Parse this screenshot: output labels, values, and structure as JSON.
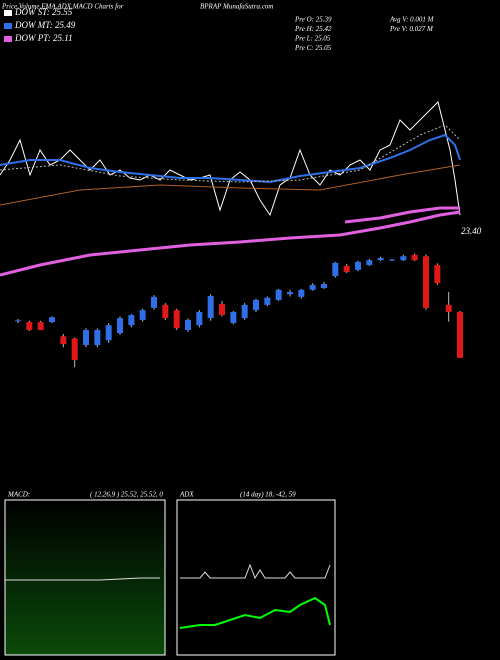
{
  "chart_data": {
    "type": "candlestick",
    "title": "Price,Volume,EMA,ADX,MACD Charts for",
    "subtitle": "BPRAP MunafaSutra.com",
    "legend": [
      {
        "name": "DOW ST: 25.55",
        "color": "#ffffff"
      },
      {
        "name": "DOW MT: 25.49",
        "color": "#2f6fe8"
      },
      {
        "name": "DOW PT: 25.11",
        "color": "#e060e0"
      }
    ],
    "stats": [
      "Pre  O: 25.39",
      "Pre  H: 25.42",
      "Pre  L: 25.05",
      "Pre  C: 25.05",
      "Avg  V: 0.001 M",
      "Pre  V: 0.027 M"
    ],
    "annotation": "23.40",
    "ylim": [
      23.0,
      25.6
    ],
    "up_color": "#2f6fe8",
    "down_color": "#e01818",
    "open": [
      23.99,
      23.97,
      23.97,
      23.97,
      23.65,
      23.6,
      23.45,
      23.45,
      23.56,
      23.72,
      23.9,
      24.02,
      24.29,
      24.36,
      24.24,
      23.79,
      23.9,
      24.06,
      24.38,
      23.95,
      24.06,
      24.24,
      24.36,
      24.47,
      24.6,
      24.54,
      24.7,
      24.74,
      25.01,
      25.24,
      25.15,
      25.26,
      25.37,
      25.37,
      25.37,
      25.49,
      25.46,
      25.26,
      24.36,
      24.2
    ],
    "high": [
      24.04,
      24.0,
      24.0,
      24.1,
      23.7,
      23.62,
      23.83,
      23.83,
      23.95,
      24.1,
      24.15,
      24.27,
      24.58,
      24.4,
      24.27,
      24.05,
      24.24,
      24.6,
      24.45,
      24.22,
      24.4,
      24.5,
      24.55,
      24.72,
      24.7,
      24.72,
      24.85,
      24.88,
      25.33,
      25.28,
      25.36,
      25.4,
      25.45,
      25.4,
      25.49,
      25.52,
      25.5,
      25.3,
      24.65,
      24.22
    ],
    "low": [
      23.95,
      23.77,
      23.79,
      23.95,
      23.4,
      22.95,
      23.4,
      23.4,
      23.5,
      23.68,
      23.85,
      23.98,
      24.25,
      24.02,
      23.79,
      23.75,
      23.85,
      24.0,
      24.1,
      23.92,
      24.02,
      24.2,
      24.33,
      24.45,
      24.55,
      24.5,
      24.68,
      24.72,
      24.98,
      25.08,
      25.12,
      25.24,
      25.35,
      25.35,
      25.35,
      25.35,
      24.24,
      24.81,
      23.98,
      23.16
    ],
    "close": [
      24.01,
      23.79,
      23.79,
      24.08,
      23.47,
      23.11,
      23.79,
      23.79,
      23.9,
      24.06,
      24.13,
      24.24,
      24.54,
      24.06,
      23.83,
      24.02,
      24.2,
      24.56,
      24.13,
      24.2,
      24.36,
      24.47,
      24.52,
      24.7,
      24.65,
      24.7,
      24.81,
      24.83,
      25.31,
      25.1,
      25.33,
      25.37,
      25.42,
      25.38,
      25.46,
      25.37,
      24.29,
      24.85,
      24.2,
      23.16
    ],
    "macd_label": "MACD:",
    "macd_params": "( 12,26,9 ) 25.52, 25.52, 0",
    "adx_label": "ADX",
    "adx_params": "(14  day)  18,  -42,  59"
  }
}
